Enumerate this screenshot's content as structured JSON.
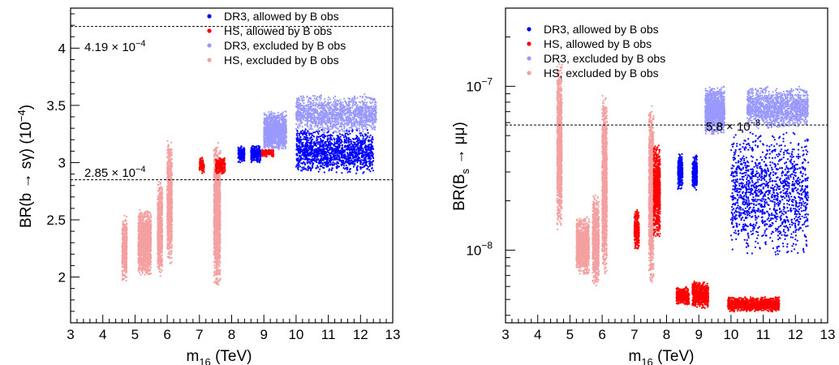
{
  "chart_data": [
    {
      "type": "scatter",
      "xlabel_main": "m",
      "xlabel_sub": "16",
      "xlabel_unit": " (TeV)",
      "ylabel_pre": "BR(b ",
      "ylabel_arrow": "→",
      "ylabel_post": " sγ) (10",
      "ylabel_exp": "−4",
      "ylabel_close": ")",
      "xlim": [
        3,
        13
      ],
      "ylim": [
        1.6,
        4.35
      ],
      "yscale": "linear",
      "xticks": [
        "3",
        "4",
        "5",
        "6",
        "7",
        "8",
        "9",
        "10",
        "11",
        "12",
        "13"
      ],
      "yticks": [
        "2",
        "2.5",
        "3",
        "3.5",
        "4"
      ],
      "legend": {
        "placement": "top-right",
        "entries": [
          {
            "label": "DR3, allowed by B obs",
            "color": "#0000ff"
          },
          {
            "label": "HS, allowed by B obs",
            "color": "#ff0000"
          },
          {
            "label": "DR3, excluded by B obs",
            "color": "#9999ff"
          },
          {
            "label": "HS, excluded by B obs",
            "color": "#f4a0a0"
          }
        ]
      },
      "reference_lines": [
        {
          "y": 4.19,
          "mantissa": "4.19",
          "times": "×",
          "base": "10",
          "exp": "−4"
        },
        {
          "y": 2.85,
          "mantissa": "2.85",
          "times": "×",
          "base": "10",
          "exp": "−4"
        }
      ],
      "series": [
        {
          "name": "DR3, allowed by B obs",
          "color": "#0000ff",
          "clusters": [
            {
              "x": [
                8.2,
                8.4
              ],
              "y": [
                3.0,
                3.15
              ]
            },
            {
              "x": [
                8.6,
                8.9
              ],
              "y": [
                3.0,
                3.15
              ]
            },
            {
              "x": [
                10.0,
                12.4
              ],
              "y": [
                2.9,
                3.3
              ]
            }
          ]
        },
        {
          "name": "HS, allowed by B obs",
          "color": "#ff0000",
          "clusters": [
            {
              "x": [
                7.0,
                7.15
              ],
              "y": [
                2.9,
                3.05
              ]
            },
            {
              "x": [
                7.5,
                7.8
              ],
              "y": [
                2.9,
                3.05
              ]
            },
            {
              "x": [
                8.85,
                9.3
              ],
              "y": [
                3.05,
                3.12
              ]
            }
          ]
        },
        {
          "name": "DR3, excluded by B obs",
          "color": "#9999ff",
          "clusters": [
            {
              "x": [
                9.0,
                9.7
              ],
              "y": [
                3.1,
                3.45
              ]
            },
            {
              "x": [
                10.0,
                12.5
              ],
              "y": [
                3.25,
                3.6
              ]
            }
          ]
        },
        {
          "name": "HS, excluded by B obs",
          "color": "#f4a0a0",
          "clusters": [
            {
              "x": [
                4.6,
                4.75
              ],
              "y": [
                1.95,
                2.55
              ]
            },
            {
              "x": [
                5.1,
                5.5
              ],
              "y": [
                2.0,
                2.6
              ]
            },
            {
              "x": [
                5.7,
                5.85
              ],
              "y": [
                2.0,
                2.85
              ]
            },
            {
              "x": [
                6.0,
                6.15
              ],
              "y": [
                2.1,
                3.2
              ]
            },
            {
              "x": [
                7.45,
                7.65
              ],
              "y": [
                1.9,
                3.2
              ]
            }
          ]
        }
      ]
    },
    {
      "type": "scatter",
      "xlabel_main": "m",
      "xlabel_sub": "16",
      "xlabel_unit": " (TeV)",
      "ylabel_pre": "BR(B",
      "ylabel_sub": "s",
      "ylabel_arrow": " → ",
      "ylabel_post": "μμ)",
      "xlim": [
        3,
        13
      ],
      "ylim": [
        3.6e-09,
        3e-07
      ],
      "yscale": "log",
      "xticks": [
        "3",
        "4",
        "5",
        "6",
        "7",
        "8",
        "9",
        "10",
        "11",
        "12",
        "13"
      ],
      "ytick_labels": [
        {
          "value": 1e-08,
          "base": "10",
          "exp": "−8"
        },
        {
          "value": 1e-07,
          "base": "10",
          "exp": "−7"
        }
      ],
      "legend": {
        "placement": "top-left",
        "entries": [
          {
            "label": "DR3, allowed by B obs",
            "color": "#0000ff"
          },
          {
            "label": "HS, allowed by B obs",
            "color": "#ff0000"
          },
          {
            "label": "DR3, excluded by B obs",
            "color": "#9999ff"
          },
          {
            "label": "HS, excluded by B obs",
            "color": "#f4a0a0"
          }
        ]
      },
      "reference_lines": [
        {
          "y": 5.8e-08,
          "mantissa": "5.8",
          "times": "×",
          "base": "10",
          "exp": "−8"
        }
      ],
      "series": [
        {
          "name": "DR3, allowed by B obs",
          "color": "#0000ff",
          "clusters": [
            {
              "x": [
                8.35,
                8.5
              ],
              "y": [
                2.3e-08,
                4e-08
              ]
            },
            {
              "x": [
                8.8,
                8.95
              ],
              "y": [
                2.3e-08,
                3.8e-08
              ]
            },
            {
              "x": [
                10.0,
                12.4
              ],
              "y": [
                9e-09,
                5.5e-08
              ]
            }
          ]
        },
        {
          "name": "HS, allowed by B obs",
          "color": "#ff0000",
          "clusters": [
            {
              "x": [
                7.0,
                7.15
              ],
              "y": [
                1e-08,
                1.8e-08
              ]
            },
            {
              "x": [
                7.6,
                7.8
              ],
              "y": [
                1.2e-08,
                4.5e-08
              ]
            },
            {
              "x": [
                8.3,
                8.7
              ],
              "y": [
                4.6e-09,
                6e-09
              ]
            },
            {
              "x": [
                8.8,
                9.3
              ],
              "y": [
                4.4e-09,
                6.5e-09
              ]
            },
            {
              "x": [
                9.9,
                11.5
              ],
              "y": [
                4.2e-09,
                5.2e-09
              ]
            }
          ]
        },
        {
          "name": "DR3, excluded by B obs",
          "color": "#9999ff",
          "clusters": [
            {
              "x": [
                9.2,
                9.8
              ],
              "y": [
                5e-08,
                1e-07
              ]
            },
            {
              "x": [
                10.5,
                12.4
              ],
              "y": [
                5.5e-08,
                1e-07
              ]
            }
          ]
        },
        {
          "name": "HS, excluded by B obs",
          "color": "#f4a0a0",
          "clusters": [
            {
              "x": [
                4.6,
                4.75
              ],
              "y": [
                1.3e-08,
                1.5e-07
              ]
            },
            {
              "x": [
                5.2,
                5.6
              ],
              "y": [
                7e-09,
                1.6e-08
              ]
            },
            {
              "x": [
                5.7,
                5.9
              ],
              "y": [
                6e-09,
                2.2e-08
              ]
            },
            {
              "x": [
                6.0,
                6.15
              ],
              "y": [
                7e-09,
                9e-08
              ]
            },
            {
              "x": [
                7.45,
                7.6
              ],
              "y": [
                6e-09,
                8e-08
              ]
            }
          ]
        }
      ]
    }
  ]
}
